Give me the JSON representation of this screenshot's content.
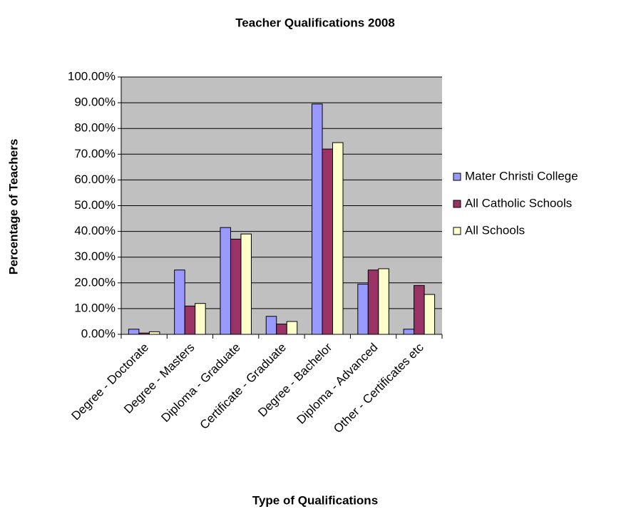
{
  "chart_data": {
    "type": "bar",
    "title": "Teacher Qualifications 2008",
    "x_label": "Type of Qualifications",
    "y_label": "Percentage of Teachers",
    "categories": [
      "Degree - Doctorate",
      "Degree - Masters",
      "Diploma - Graduate",
      "Certificate - Graduate",
      "Degree - Bachelor",
      "Diploma - Advanced",
      "Other - Certificates etc"
    ],
    "series": [
      {
        "name": "Mater Christi College",
        "color": "#9999ff",
        "values": [
          2,
          25,
          41.5,
          7,
          89.5,
          19.5,
          2
        ]
      },
      {
        "name": "All Catholic Schools",
        "color": "#993366",
        "values": [
          0.5,
          11,
          37,
          4,
          72,
          25,
          19
        ]
      },
      {
        "name": "All Schools",
        "color": "#ffffcc",
        "values": [
          1,
          12,
          39,
          5,
          74.5,
          25.5,
          15.5
        ]
      }
    ],
    "ylim": [
      0,
      100
    ],
    "yticks": [
      {
        "value": 0,
        "label": "0.00%"
      },
      {
        "value": 10,
        "label": "10.00%"
      },
      {
        "value": 20,
        "label": "20.00%"
      },
      {
        "value": 30,
        "label": "30.00%"
      },
      {
        "value": 40,
        "label": "40.00%"
      },
      {
        "value": 50,
        "label": "50.00%"
      },
      {
        "value": 60,
        "label": "60.00%"
      },
      {
        "value": 70,
        "label": "70.00%"
      },
      {
        "value": 80,
        "label": "80.00%"
      },
      {
        "value": 90,
        "label": "90.00%"
      },
      {
        "value": 100,
        "label": "100.00%"
      }
    ],
    "grid": true,
    "legend": "right"
  }
}
